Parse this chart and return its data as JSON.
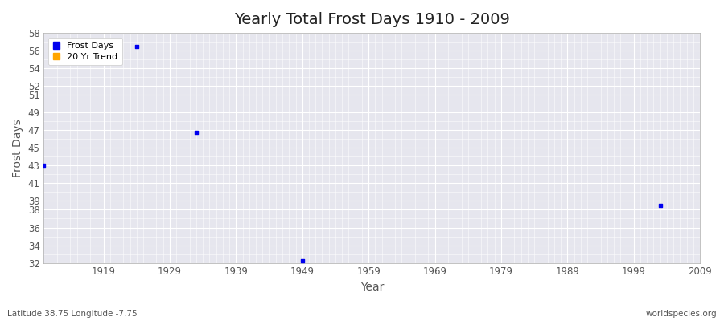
{
  "title": "Yearly Total Frost Days 1910 - 2009",
  "xlabel": "Year",
  "ylabel": "Frost Days",
  "xlim": [
    1910,
    2009
  ],
  "ylim": [
    32,
    58
  ],
  "yticks": [
    32,
    34,
    36,
    38,
    39,
    41,
    43,
    45,
    47,
    49,
    51,
    52,
    54,
    56,
    58
  ],
  "xticks": [
    1919,
    1929,
    1939,
    1949,
    1959,
    1969,
    1979,
    1989,
    1999,
    2009
  ],
  "frost_days_x": [
    1910,
    1924,
    1933,
    1949,
    2003
  ],
  "frost_days_y": [
    43,
    56.5,
    46.8,
    32.2,
    38.5
  ],
  "point_color": "#0000EE",
  "trend_color": "#FFA500",
  "plot_bg_color": "#E6E6EE",
  "fig_bg_color": "#FFFFFF",
  "grid_color": "#FFFFFF",
  "title_fontsize": 14,
  "axis_fontsize": 10,
  "tick_fontsize": 8.5,
  "subtitle_left": "Latitude 38.75 Longitude -7.75",
  "subtitle_right": "worldspecies.org",
  "legend_frost": "Frost Days",
  "legend_trend": "20 Yr Trend"
}
